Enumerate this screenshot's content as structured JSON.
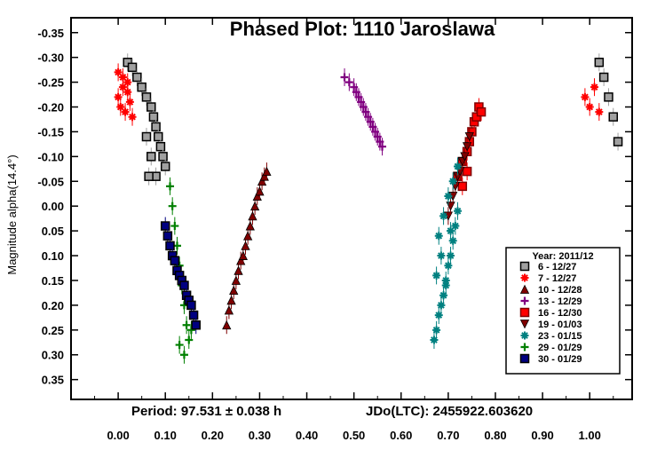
{
  "chart_data": {
    "type": "scatter",
    "title": "Phased Plot: 1110 Jaroslawa",
    "xlabel": "",
    "ylabel": "Magnitude alpha(14.4°)",
    "xlim": [
      -0.1,
      1.09
    ],
    "ylim": [
      -0.38,
      0.39
    ],
    "y_inverted": true,
    "x_ticks": [
      "0.00",
      "0.10",
      "0.20",
      "0.30",
      "0.40",
      "0.50",
      "0.60",
      "0.70",
      "0.80",
      "0.90",
      "1.00"
    ],
    "y_ticks": [
      "-0.35",
      "-0.30",
      "-0.25",
      "-0.20",
      "-0.15",
      "-0.10",
      "-0.05",
      "0.00",
      "0.05",
      "0.10",
      "0.15",
      "0.20",
      "0.25",
      "0.30",
      "0.35"
    ],
    "annotations": {
      "period": "Period: 97.531 ± 0.038 h",
      "epoch": "JDo(LTC): 2455922.603620"
    },
    "legend": {
      "title": "Year: 2011/12",
      "placement": "right"
    },
    "series": [
      {
        "name": "6 - 12/27",
        "marker": "square",
        "color": "#a0a0a0",
        "edge": "#000000",
        "x": [
          0.02,
          0.03,
          0.04,
          0.05,
          0.06,
          0.07,
          0.075,
          0.08,
          0.085,
          0.09,
          0.095,
          0.1,
          0.06,
          0.07,
          0.08,
          0.065,
          1.02,
          1.03,
          1.04,
          1.05,
          1.06
        ],
        "y": [
          -0.29,
          -0.28,
          -0.26,
          -0.24,
          -0.22,
          -0.2,
          -0.18,
          -0.16,
          -0.14,
          -0.12,
          -0.1,
          -0.08,
          -0.14,
          -0.1,
          -0.06,
          -0.06,
          -0.29,
          -0.26,
          -0.22,
          -0.18,
          -0.13
        ]
      },
      {
        "name": "7 - 12/27",
        "marker": "asterisk",
        "color": "#ff0000",
        "x": [
          0.0,
          0.005,
          0.01,
          0.015,
          0.02,
          0.025,
          0.01,
          0.03,
          0.0,
          0.02,
          0.99,
          1.0,
          1.01,
          1.02
        ],
        "y": [
          -0.22,
          -0.2,
          -0.24,
          -0.19,
          -0.23,
          -0.21,
          -0.26,
          -0.18,
          -0.27,
          -0.25,
          -0.22,
          -0.2,
          -0.24,
          -0.19
        ]
      },
      {
        "name": "10 - 12/28",
        "marker": "triangle",
        "color": "#800000",
        "x": [
          0.23,
          0.235,
          0.24,
          0.245,
          0.25,
          0.255,
          0.26,
          0.265,
          0.27,
          0.275,
          0.28,
          0.285,
          0.29,
          0.295,
          0.3,
          0.305,
          0.31,
          0.315
        ],
        "y": [
          0.24,
          0.21,
          0.19,
          0.17,
          0.15,
          0.13,
          0.11,
          0.1,
          0.08,
          0.06,
          0.04,
          0.02,
          0.0,
          -0.02,
          -0.03,
          -0.05,
          -0.06,
          -0.07
        ]
      },
      {
        "name": "13 - 12/29",
        "marker": "plus",
        "color": "#800080",
        "x": [
          0.48,
          0.49,
          0.5,
          0.505,
          0.51,
          0.515,
          0.52,
          0.525,
          0.53,
          0.535,
          0.54,
          0.545,
          0.55,
          0.555,
          0.56
        ],
        "y": [
          -0.26,
          -0.25,
          -0.24,
          -0.23,
          -0.22,
          -0.21,
          -0.2,
          -0.19,
          -0.18,
          -0.17,
          -0.16,
          -0.15,
          -0.14,
          -0.13,
          -0.12
        ]
      },
      {
        "name": "16 - 12/30",
        "marker": "square",
        "color": "#ff0000",
        "edge": "#800000",
        "x": [
          0.72,
          0.73,
          0.74,
          0.745,
          0.75,
          0.755,
          0.76,
          0.765,
          0.77,
          0.74,
          0.73
        ],
        "y": [
          -0.06,
          -0.09,
          -0.11,
          -0.13,
          -0.15,
          -0.17,
          -0.18,
          -0.2,
          -0.19,
          -0.07,
          -0.04
        ]
      },
      {
        "name": "19 - 01/03",
        "marker": "triangle-down",
        "color": "#800000",
        "x": [
          0.7,
          0.705,
          0.71,
          0.715,
          0.72,
          0.725,
          0.73,
          0.735,
          0.74,
          0.745
        ],
        "y": [
          0.02,
          0.0,
          -0.02,
          -0.04,
          -0.06,
          -0.07,
          -0.09,
          -0.1,
          -0.12,
          -0.14
        ]
      },
      {
        "name": "23 - 01/15",
        "marker": "asterisk",
        "color": "#008080",
        "x": [
          0.67,
          0.675,
          0.68,
          0.685,
          0.69,
          0.695,
          0.7,
          0.705,
          0.71,
          0.715,
          0.72,
          0.68,
          0.69,
          0.7,
          0.675,
          0.685,
          0.695,
          0.705,
          0.71,
          0.72
        ],
        "y": [
          0.27,
          0.25,
          0.22,
          0.2,
          0.18,
          0.15,
          0.12,
          0.1,
          0.07,
          0.04,
          0.01,
          0.06,
          0.02,
          -0.02,
          0.14,
          0.1,
          0.16,
          0.05,
          -0.05,
          -0.08
        ]
      },
      {
        "name": "29 - 01/29",
        "marker": "plus",
        "color": "#008000",
        "x": [
          0.11,
          0.115,
          0.12,
          0.125,
          0.13,
          0.135,
          0.14,
          0.145,
          0.15,
          0.155,
          0.16,
          0.13,
          0.14
        ],
        "y": [
          -0.04,
          0.0,
          0.04,
          0.08,
          0.12,
          0.16,
          0.2,
          0.24,
          0.27,
          0.25,
          0.22,
          0.28,
          0.3
        ]
      },
      {
        "name": "30 - 01/29",
        "marker": "square",
        "color": "#000080",
        "edge": "#000000",
        "x": [
          0.1,
          0.105,
          0.11,
          0.115,
          0.12,
          0.125,
          0.13,
          0.135,
          0.14,
          0.145,
          0.15,
          0.155,
          0.16,
          0.165
        ],
        "y": [
          0.04,
          0.06,
          0.08,
          0.1,
          0.11,
          0.13,
          0.14,
          0.15,
          0.16,
          0.18,
          0.19,
          0.2,
          0.22,
          0.24
        ]
      }
    ]
  }
}
